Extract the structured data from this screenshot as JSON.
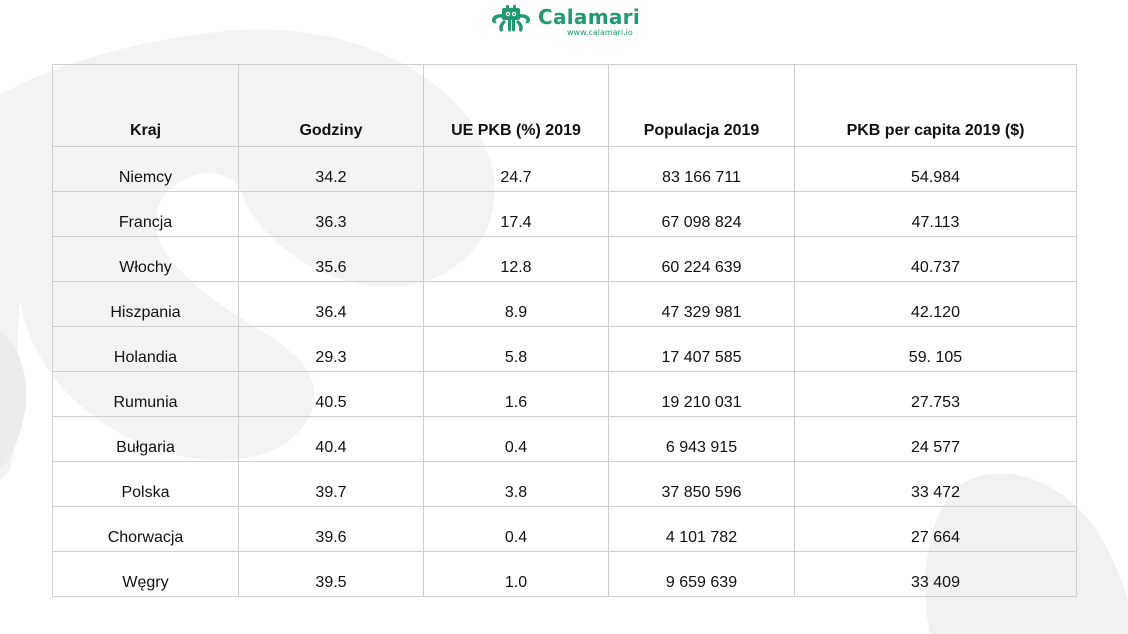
{
  "brand": {
    "name": "Calamari",
    "url": "www.calamari.io",
    "color": "#1f9a72",
    "icon": "calamari-octopus-icon"
  },
  "table": {
    "headers": [
      "Kraj",
      "Godziny",
      "UE PKB (%) 2019",
      "Populacja 2019",
      "PKB per capita 2019 ($)"
    ],
    "rows": [
      [
        "Niemcy",
        "34.2",
        "24.7",
        "83 166 711",
        "54.984"
      ],
      [
        "Francja",
        "36.3",
        "17.4",
        "67 098 824",
        "47.113"
      ],
      [
        "Włochy",
        "35.6",
        "12.8",
        "60 224 639",
        "40.737"
      ],
      [
        "Hiszpania",
        "36.4",
        "8.9",
        "47 329 981",
        "42.120"
      ],
      [
        "Holandia",
        "29.3",
        "5.8",
        "17 407 585",
        "59. 105"
      ],
      [
        "Rumunia",
        "40.5",
        "1.6",
        "19 210 031",
        "27.753"
      ],
      [
        "Bułgaria",
        "40.4",
        "0.4",
        "6 943 915",
        "24 577"
      ],
      [
        "Polska",
        "39.7",
        "3.8",
        "37 850 596",
        "33 472"
      ],
      [
        "Chorwacja",
        "39.6",
        "0.4",
        "4 101 782",
        "27 664"
      ],
      [
        "Węgry",
        "39.5",
        "1.0",
        "9 659 639",
        "33 409"
      ]
    ]
  }
}
